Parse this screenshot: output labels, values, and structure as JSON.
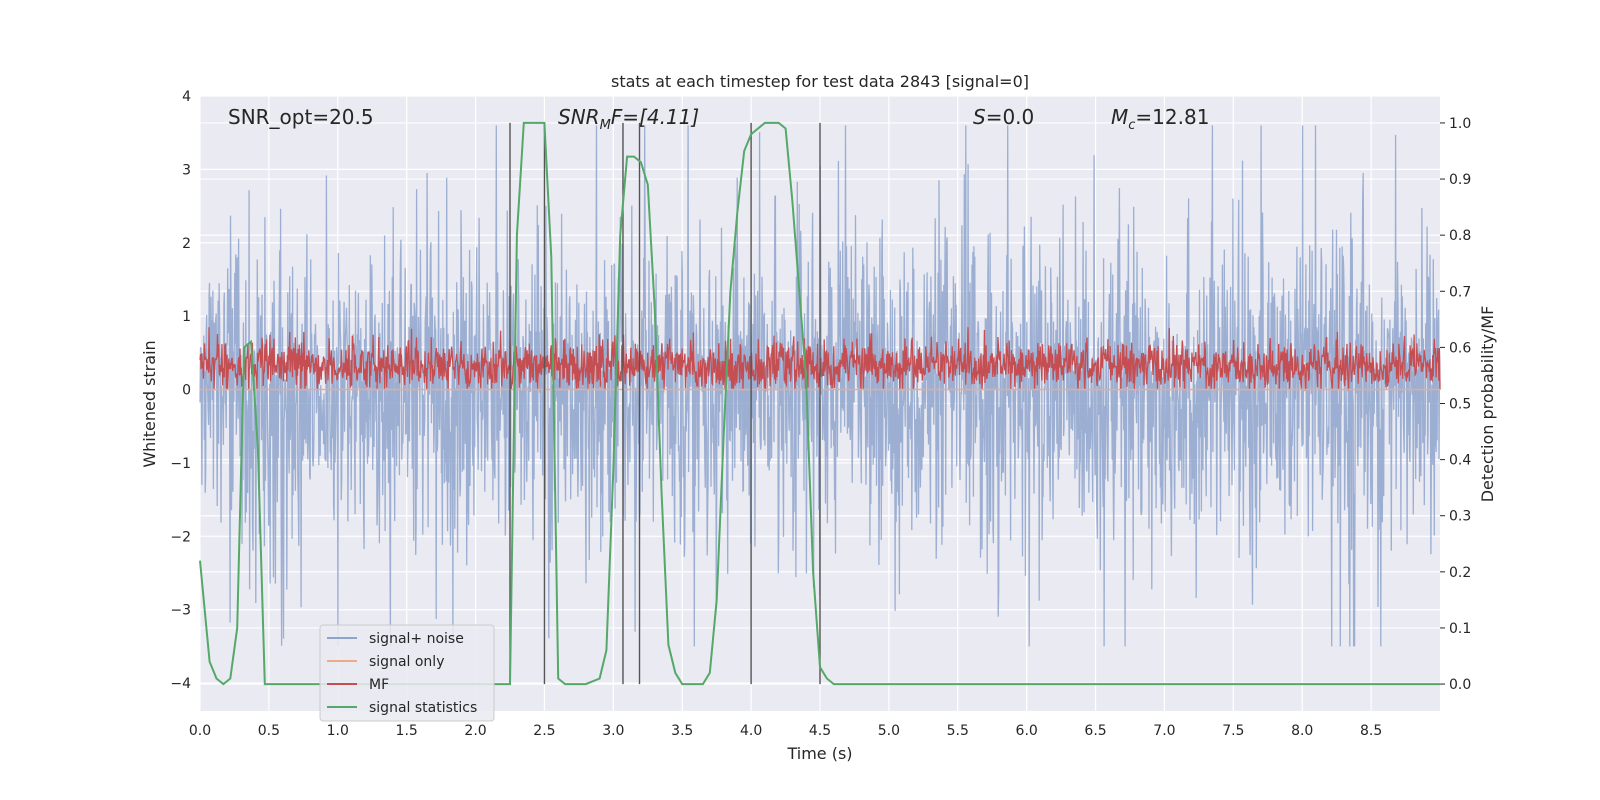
{
  "chart_data": {
    "type": "line",
    "title": "stats at each timestep for test data 2843 [signal=0]",
    "xlabel": "Time (s)",
    "ylabel_left": "Whitened strain",
    "ylabel_right": "Detection probability/MF",
    "xlim": [
      0.0,
      9.0
    ],
    "ylim_left": [
      -4.38,
      4.0
    ],
    "ylim_right": [
      -0.048,
      1.048
    ],
    "x_ticks": [
      "0.0",
      "0.5",
      "1.0",
      "1.5",
      "2.0",
      "2.5",
      "3.0",
      "3.5",
      "4.0",
      "4.5",
      "5.0",
      "5.5",
      "6.0",
      "6.5",
      "7.0",
      "7.5",
      "8.0",
      "8.5"
    ],
    "y_left_ticks": [
      "4",
      "3",
      "2",
      "1",
      "0",
      "−1",
      "−2",
      "−3",
      "−4"
    ],
    "y_right_ticks": [
      "1.0",
      "0.9",
      "0.8",
      "0.7",
      "0.6",
      "0.5",
      "0.4",
      "0.3",
      "0.2",
      "0.1",
      "0.0"
    ],
    "grid": true,
    "background": "#eaeaf2",
    "annotations": {
      "snr_opt": "SNR_opt=20.5",
      "snr_mf_main": "SNR",
      "snr_mf_sub": "M",
      "snr_mf_tail": "F=[4.11]",
      "s_main": "S",
      "s_tail": "=0.0",
      "mc_main": "M",
      "mc_sub": "c",
      "mc_tail": "=12.81"
    },
    "vertical_lines_x": [
      2.25,
      2.5,
      3.07,
      3.19,
      4.0,
      4.5
    ],
    "series": [
      {
        "name": "signal+ noise",
        "color": "#8ea4cc",
        "axis": "left",
        "description": "dense noisy strain, roughly between -3.5 and 3.6",
        "amplitude_typical": 1.7,
        "amplitude_max": 3.6
      },
      {
        "name": "signal only",
        "color": "#eeaa88",
        "axis": "left",
        "constant_value": 0.0
      },
      {
        "name": "MF",
        "color": "#c44e52",
        "axis": "left",
        "range": [
          0.0,
          0.85
        ]
      },
      {
        "name": "signal statistics",
        "color": "#55a868",
        "axis": "right",
        "x": [
          0.0,
          0.07,
          0.12,
          0.17,
          0.22,
          0.27,
          0.32,
          0.37,
          0.42,
          0.47,
          0.52,
          0.6,
          0.8,
          1.0,
          1.5,
          2.0,
          2.1,
          2.15,
          2.2,
          2.25,
          2.3,
          2.35,
          2.4,
          2.45,
          2.5,
          2.55,
          2.6,
          2.65,
          2.7,
          2.8,
          2.9,
          2.95,
          3.0,
          3.05,
          3.1,
          3.15,
          3.2,
          3.25,
          3.3,
          3.35,
          3.4,
          3.45,
          3.5,
          3.55,
          3.6,
          3.65,
          3.7,
          3.75,
          3.8,
          3.85,
          3.9,
          3.95,
          4.0,
          4.05,
          4.1,
          4.15,
          4.2,
          4.25,
          4.3,
          4.4,
          4.45,
          4.5,
          4.55,
          4.6,
          4.65,
          4.7,
          4.75,
          4.8,
          5.0,
          6.0,
          7.0,
          8.0,
          9.0
        ],
        "values": [
          0.22,
          0.04,
          0.01,
          0.0,
          0.01,
          0.1,
          0.6,
          0.61,
          0.42,
          0.0,
          0.0,
          0.0,
          0.0,
          0.0,
          0.0,
          0.0,
          0.0,
          0.0,
          0.0,
          0.0,
          0.8,
          1.0,
          1.0,
          1.0,
          1.0,
          0.76,
          0.01,
          0.0,
          0.0,
          0.0,
          0.01,
          0.06,
          0.38,
          0.8,
          0.94,
          0.94,
          0.93,
          0.89,
          0.67,
          0.34,
          0.07,
          0.02,
          0.0,
          0.0,
          0.0,
          0.0,
          0.02,
          0.15,
          0.44,
          0.7,
          0.84,
          0.95,
          0.98,
          0.99,
          1.0,
          1.0,
          1.0,
          0.99,
          0.86,
          0.54,
          0.2,
          0.03,
          0.01,
          0.0,
          0.0,
          0.0,
          0.0,
          0.0,
          0.0,
          0.0,
          0.0,
          0.0,
          0.0
        ]
      }
    ],
    "legend_position": "lower-left",
    "legend_labels": [
      "signal+ noise",
      "signal only",
      "MF",
      "signal statistics"
    ]
  }
}
